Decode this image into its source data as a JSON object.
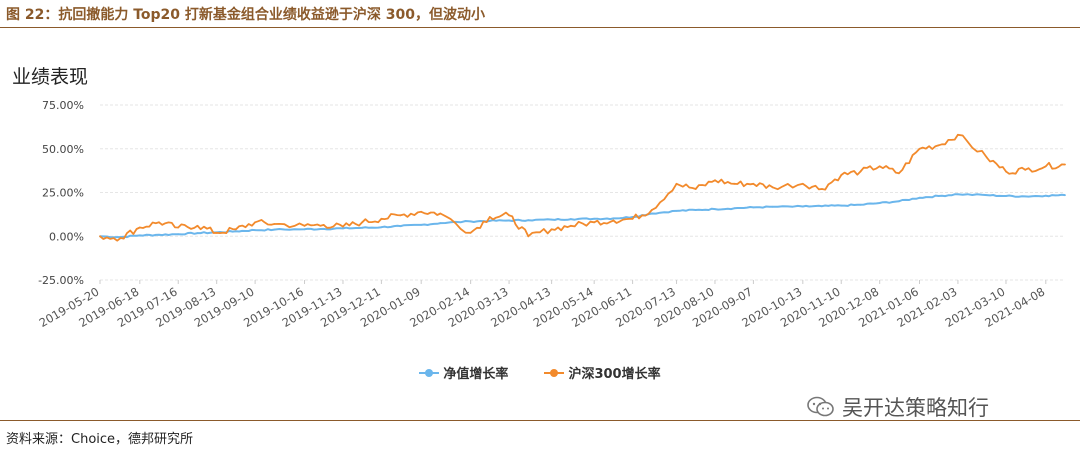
{
  "caption": "图 22：抗回撤能力 Top20 打新基金组合业绩收益逊于沪深 300，但波动小",
  "chart_title": "业绩表现",
  "source": "资料来源：Choice，德邦研究所",
  "watermark": "吴开达策略知行",
  "chart_data": {
    "type": "line",
    "title": "业绩表现",
    "xlabel": "",
    "ylabel": "",
    "ylim": [
      -0.25,
      0.75
    ],
    "yticks": [
      -0.25,
      0,
      0.25,
      0.5,
      0.75
    ],
    "ytick_labels": [
      "-25.00%",
      "0.00%",
      "25.00%",
      "50.00%",
      "75.00%"
    ],
    "grid": true,
    "legend_position": "bottom",
    "xtick_labels": [
      "2019-05-20",
      "2019-06-18",
      "2019-07-16",
      "2019-08-13",
      "2019-09-10",
      "2019-10-16",
      "2019-11-13",
      "2019-12-11",
      "2020-01-09",
      "2020-02-14",
      "2020-03-13",
      "2020-04-13",
      "2020-05-14",
      "2020-06-11",
      "2020-07-13",
      "2020-08-10",
      "2020-09-07",
      "2020-10-13",
      "2020-11-10",
      "2020-12-08",
      "2021-01-06",
      "2021-02-03",
      "2021-03-10",
      "2021-04-08"
    ],
    "x": [
      "2019-05-20",
      "2019-06-04",
      "2019-06-18",
      "2019-07-02",
      "2019-07-16",
      "2019-07-30",
      "2019-08-13",
      "2019-08-27",
      "2019-09-10",
      "2019-09-24",
      "2019-10-16",
      "2019-10-30",
      "2019-11-13",
      "2019-11-27",
      "2019-12-11",
      "2019-12-25",
      "2020-01-09",
      "2020-01-23",
      "2020-02-14",
      "2020-02-28",
      "2020-03-13",
      "2020-03-27",
      "2020-04-13",
      "2020-04-27",
      "2020-05-14",
      "2020-05-28",
      "2020-06-11",
      "2020-06-25",
      "2020-07-13",
      "2020-07-27",
      "2020-08-10",
      "2020-08-24",
      "2020-09-07",
      "2020-09-21",
      "2020-10-13",
      "2020-10-27",
      "2020-11-10",
      "2020-11-24",
      "2020-12-08",
      "2020-12-22",
      "2021-01-06",
      "2021-01-20",
      "2021-02-03",
      "2021-02-24",
      "2021-03-10",
      "2021-03-24",
      "2021-04-08",
      "2021-04-22"
    ],
    "series": [
      {
        "name": "净值增长率",
        "color": "#6bb6ec",
        "values": [
          0.0,
          -0.005,
          0.005,
          0.008,
          0.012,
          0.018,
          0.022,
          0.028,
          0.035,
          0.038,
          0.04,
          0.042,
          0.045,
          0.048,
          0.052,
          0.058,
          0.065,
          0.075,
          0.085,
          0.088,
          0.09,
          0.092,
          0.095,
          0.098,
          0.1,
          0.102,
          0.11,
          0.13,
          0.145,
          0.15,
          0.155,
          0.16,
          0.165,
          0.168,
          0.17,
          0.172,
          0.175,
          0.18,
          0.19,
          0.2,
          0.22,
          0.23,
          0.24,
          0.235,
          0.23,
          0.228,
          0.232,
          0.235
        ]
      },
      {
        "name": "沪深300增长率",
        "color": "#f28a2c",
        "values": [
          0.0,
          -0.01,
          0.05,
          0.08,
          0.05,
          0.06,
          0.02,
          0.04,
          0.08,
          0.07,
          0.06,
          0.065,
          0.055,
          0.08,
          0.1,
          0.12,
          0.14,
          0.13,
          0.02,
          0.11,
          0.12,
          0.0,
          0.04,
          0.06,
          0.08,
          0.09,
          0.1,
          0.15,
          0.3,
          0.27,
          0.32,
          0.3,
          0.3,
          0.28,
          0.3,
          0.27,
          0.35,
          0.37,
          0.4,
          0.36,
          0.5,
          0.52,
          0.58,
          0.45,
          0.37,
          0.38,
          0.4,
          0.41
        ]
      }
    ]
  }
}
